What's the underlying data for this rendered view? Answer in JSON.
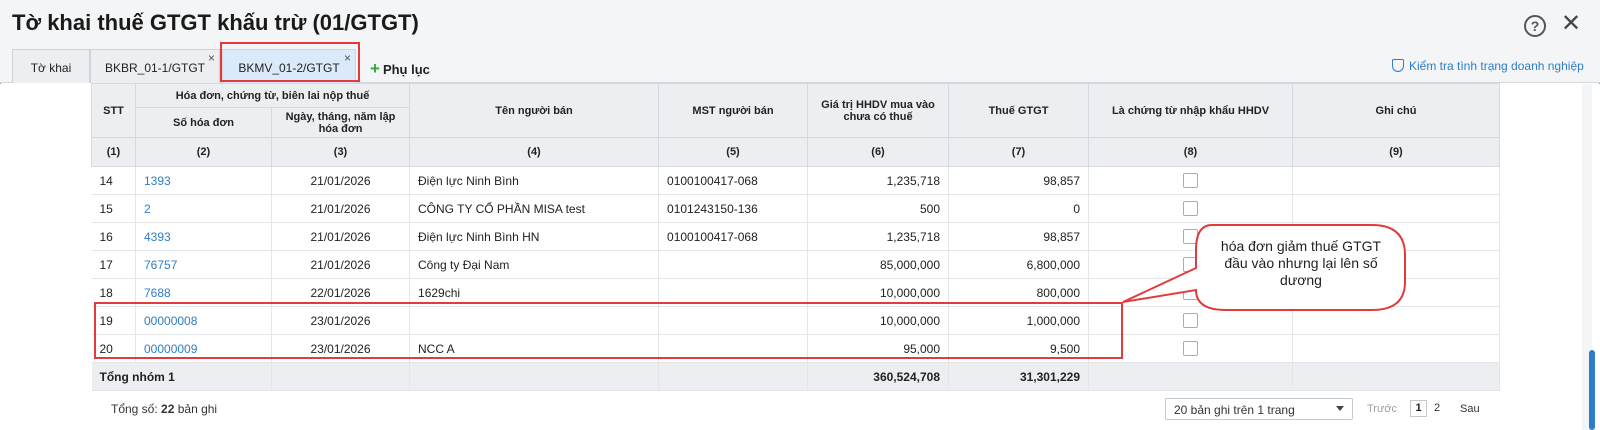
{
  "window": {
    "title": "Tờ khai thuế GTGT khấu trừ (01/GTGT)",
    "help_glyph": "?",
    "close_glyph": "✕"
  },
  "tabs": [
    {
      "label": "Tờ khai"
    },
    {
      "label": "BKBR_01-1/GTGT",
      "close": "×"
    },
    {
      "label": "BKMV_01-2/GTGT",
      "close": "×",
      "active": true
    }
  ],
  "add_tab": {
    "plus": "+",
    "label": "Phụ lục"
  },
  "check_status": {
    "label": "Kiểm tra tình trạng doanh nghiệp",
    "icon": "shield-check-icon"
  },
  "table": {
    "headers": {
      "stt": "STT",
      "group": "Hóa đơn, chứng từ, biên lai nộp thuế",
      "invoice_no": "Số hóa đơn",
      "date": "Ngày, tháng, năm lập hóa đơn",
      "seller_name": "Tên người bán",
      "seller_tax": "MST người bán",
      "value": "Giá trị HHDV mua vào chưa có thuế",
      "vat": "Thuế GTGT",
      "import": "Là chứng từ nhập khẩu HHDV",
      "note": "Ghi chú"
    },
    "col_numbers": [
      "(1)",
      "(2)",
      "(3)",
      "(4)",
      "(5)",
      "(6)",
      "(7)",
      "(8)",
      "(9)"
    ],
    "rows": [
      {
        "stt": "14",
        "invoice_no": "1393",
        "date": "21/01/2026",
        "seller_name": "Điện lực Ninh Bình",
        "seller_tax": "0100100417-068",
        "value": "1,235,718",
        "vat": "98,857",
        "note": ""
      },
      {
        "stt": "15",
        "invoice_no": "2",
        "date": "21/01/2026",
        "seller_name": "CÔNG TY CỔ PHẦN MISA test",
        "seller_tax": "0101243150-136",
        "value": "500",
        "vat": "0",
        "note": ""
      },
      {
        "stt": "16",
        "invoice_no": "4393",
        "date": "21/01/2026",
        "seller_name": "Điện lực Ninh Bình  HN",
        "seller_tax": "0100100417-068",
        "value": "1,235,718",
        "vat": "98,857",
        "note": ""
      },
      {
        "stt": "17",
        "invoice_no": "76757",
        "date": "21/01/2026",
        "seller_name": "Công ty Đại Nam",
        "seller_tax": "",
        "value": "85,000,000",
        "vat": "6,800,000",
        "note": ""
      },
      {
        "stt": "18",
        "invoice_no": "7688",
        "date": "22/01/2026",
        "seller_name": "1629chi",
        "seller_tax": "",
        "value": "10,000,000",
        "vat": "800,000",
        "note": ""
      },
      {
        "stt": "19",
        "invoice_no": "00000008",
        "date": "23/01/2026",
        "seller_name": "",
        "seller_tax": "",
        "value": "10,000,000",
        "vat": "1,000,000",
        "note": ""
      },
      {
        "stt": "20",
        "invoice_no": "00000009",
        "date": "23/01/2026",
        "seller_name": "NCC A",
        "seller_tax": "",
        "value": "95,000",
        "vat": "9,500",
        "note": ""
      }
    ],
    "total": {
      "label": "Tổng nhóm 1",
      "value": "360,524,708",
      "vat": "31,301,229"
    }
  },
  "footer": {
    "total_prefix": "Tổng số: ",
    "total_count": "22",
    "total_suffix": " bản ghi",
    "page_size": "20 bản ghi trên 1 trang",
    "prev": "Trước",
    "pages": [
      "1",
      "2"
    ],
    "next": "Sau"
  },
  "annotation": {
    "text": "hóa đơn giảm thuế GTGT đầu vào nhưng lại lên số dương",
    "color": "#e23b3b"
  },
  "colors": {
    "accent": "#2f7dc8",
    "highlight": "#e23b3b",
    "header_bg": "#eceef1"
  }
}
